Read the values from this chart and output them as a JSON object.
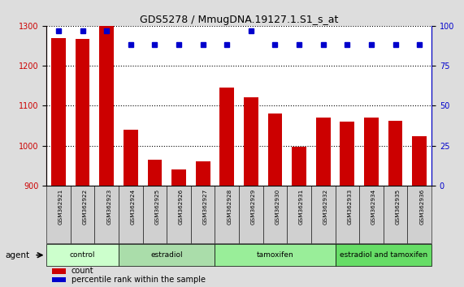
{
  "title": "GDS5278 / MmugDNA.19127.1.S1_s_at",
  "samples": [
    "GSM362921",
    "GSM362922",
    "GSM362923",
    "GSM362924",
    "GSM362925",
    "GSM362926",
    "GSM362927",
    "GSM362928",
    "GSM362929",
    "GSM362930",
    "GSM362931",
    "GSM362932",
    "GSM362933",
    "GSM362934",
    "GSM362935",
    "GSM362936"
  ],
  "counts": [
    1270,
    1268,
    1300,
    1040,
    965,
    940,
    960,
    1145,
    1120,
    1080,
    998,
    1070,
    1060,
    1070,
    1063,
    1023
  ],
  "percentiles": [
    97,
    97,
    97,
    88,
    88,
    88,
    88,
    88,
    97,
    88,
    88,
    88,
    88,
    88,
    88,
    88
  ],
  "bar_color": "#cc0000",
  "dot_color": "#0000cc",
  "ylim_left": [
    900,
    1300
  ],
  "ylim_right": [
    0,
    100
  ],
  "yticks_left": [
    900,
    1000,
    1100,
    1200,
    1300
  ],
  "yticks_right": [
    0,
    25,
    50,
    75,
    100
  ],
  "groups": [
    {
      "label": "control",
      "start": 0,
      "end": 3,
      "color": "#ccffcc"
    },
    {
      "label": "estradiol",
      "start": 3,
      "end": 7,
      "color": "#99ee99"
    },
    {
      "label": "tamoxifen",
      "start": 7,
      "end": 12,
      "color": "#99ee99"
    },
    {
      "label": "estradiol and tamoxifen",
      "start": 12,
      "end": 16,
      "color": "#66dd66"
    }
  ],
  "agent_label": "agent",
  "legend_count_label": "count",
  "legend_pct_label": "percentile rank within the sample",
  "fig_bg": "#dddddd",
  "plot_bg": "#ffffff",
  "xtick_bg": "#d0d0d0"
}
